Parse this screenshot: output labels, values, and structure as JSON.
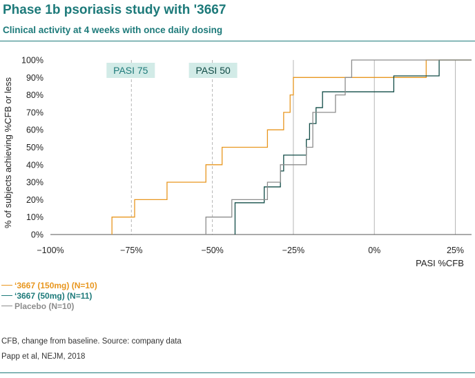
{
  "header": {
    "title": "Phase 1b psoriasis study with '3667",
    "subtitle": "Clinical activity at 4 weeks with once daily dosing"
  },
  "chart_data": {
    "type": "line",
    "step": true,
    "xlabel": "PASI %CFB",
    "ylabel": "% of subjects achieving %CFB or less",
    "xlim": [
      -100,
      30
    ],
    "ylim": [
      0,
      100
    ],
    "x_ticks": [
      -100,
      -75,
      -50,
      -25,
      0,
      25
    ],
    "x_tick_labels": [
      "−100%",
      "−75%",
      "−50%",
      "−25%",
      "0%",
      "25%"
    ],
    "y_ticks": [
      0,
      10,
      20,
      30,
      40,
      50,
      60,
      70,
      80,
      90,
      100
    ],
    "y_tick_labels": [
      "0%",
      "10%",
      "20%",
      "30%",
      "40%",
      "50%",
      "60%",
      "70%",
      "80%",
      "90%",
      "100%"
    ],
    "reference_lines": [
      {
        "x": -75,
        "label": "PASI 75",
        "style": "dashed"
      },
      {
        "x": -50,
        "label": "PASI 50",
        "style": "dashed"
      },
      {
        "x": -25,
        "style": "solid"
      },
      {
        "x": 0,
        "style": "solid"
      },
      {
        "x": 25,
        "style": "solid"
      }
    ],
    "series": [
      {
        "name": "‘3667 (150mg) (N=10)",
        "color": "#e8961e",
        "x": [
          -81,
          -74,
          -64,
          -52,
          -47,
          -33,
          -28,
          -26,
          -25,
          16,
          21,
          30
        ],
        "y": [
          10,
          20,
          30,
          40,
          50,
          60,
          70,
          80,
          90,
          100,
          100,
          100
        ]
      },
      {
        "name": "‘3667 (50mg) (N=11)",
        "color": "#0f4a45",
        "x": [
          -43,
          -34,
          -29,
          -28,
          -21,
          -20,
          -18,
          -16,
          -15,
          -14,
          -12,
          6,
          20,
          30
        ],
        "y": [
          18.2,
          27.3,
          36.4,
          45.5,
          54.5,
          63.6,
          72.7,
          81.8,
          81.8,
          81.8,
          81.8,
          90.9,
          100,
          100
        ],
        "note": "x = step position, y = cumulative % after step"
      },
      {
        "name": "Placebo (N=10)",
        "color": "#8c8c8c",
        "x": [
          -52,
          -44,
          -33,
          -29,
          -21,
          -19,
          -12,
          -9,
          -7,
          30
        ],
        "y": [
          10,
          20,
          30,
          40,
          50,
          70,
          80,
          90,
          100,
          100
        ]
      }
    ]
  },
  "legend": [
    {
      "label": "‘3667 (150mg) (N=10)",
      "color": "#e8961e"
    },
    {
      "label": "‘3667 (50mg) (N=11)",
      "color": "#1d7a7a"
    },
    {
      "label": "Placebo (N=10)",
      "color": "#8c8c8c"
    }
  ],
  "footnotes": {
    "line1": "CFB, change from baseline. Source: company data",
    "line2": "Papp et al, NEJM, 2018"
  }
}
